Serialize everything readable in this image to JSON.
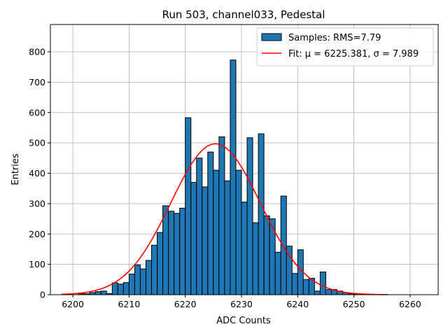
{
  "chart_data": {
    "type": "bar",
    "title": "Run 503, channel033, Pedestal",
    "xlabel": "ADC Counts",
    "ylabel": "Entries",
    "xlim": [
      6196,
      6265
    ],
    "ylim": [
      0,
      890
    ],
    "xticks": [
      6200,
      6210,
      6220,
      6230,
      6240,
      6250,
      6260
    ],
    "yticks": [
      0,
      100,
      200,
      300,
      400,
      500,
      600,
      700,
      800
    ],
    "grid": true,
    "legend_position": "top-right",
    "bar_color": "#1f77b4",
    "bar_edge_color": "#000000",
    "fit_color": "#ff0000",
    "series": [
      {
        "name": "Samples: RMS=7.79",
        "bins": {
          "start": 6201,
          "width": 1,
          "counts": [
            3,
            3,
            7,
            10,
            12,
            4,
            39,
            35,
            40,
            68,
            98,
            85,
            113,
            163,
            205,
            293,
            275,
            268,
            285,
            583,
            370,
            450,
            355,
            470,
            410,
            520,
            375,
            773,
            410,
            305,
            517,
            237,
            530,
            260,
            250,
            140,
            325,
            160,
            70,
            148,
            50,
            54,
            12,
            75,
            17,
            17,
            12,
            7,
            3,
            2
          ]
        }
      },
      {
        "name": "Fit: μ = 6225.381, σ = 7.989",
        "function": "gaussian",
        "mu": 6225.381,
        "sigma": 7.989,
        "amplitude": 497,
        "x_range": [
          6198,
          6256
        ]
      }
    ]
  }
}
